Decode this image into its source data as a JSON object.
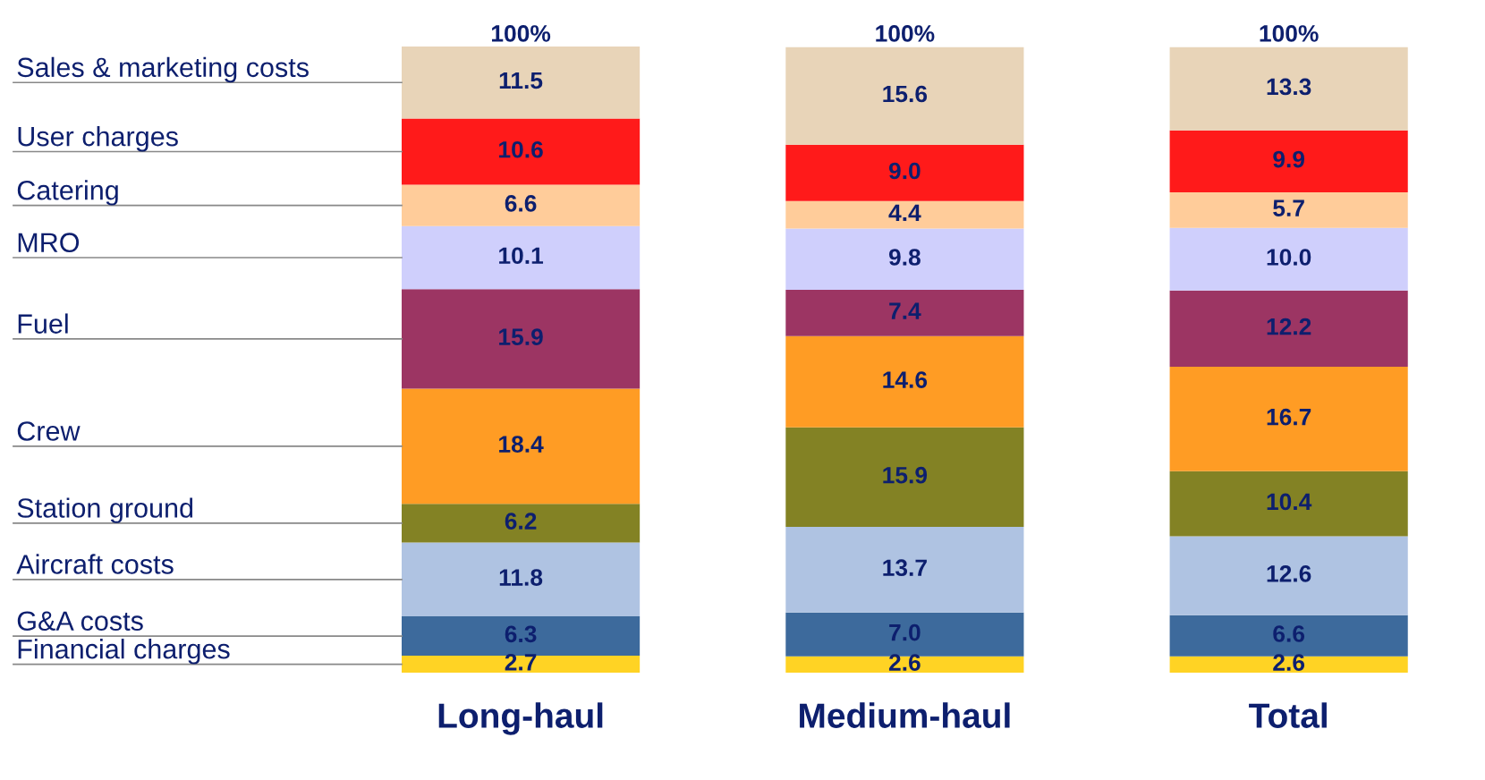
{
  "chart_data": {
    "type": "bar",
    "stacked": true,
    "legend": false,
    "categories": [
      "Long-haul",
      "Medium-haul",
      "Total"
    ],
    "totals": [
      "100%",
      "100%",
      "100%"
    ],
    "series": [
      {
        "name": "Financial charges",
        "color": "#ffd324",
        "values": [
          2.7,
          2.6,
          2.6
        ],
        "value_labels": [
          "2.7",
          "2.6",
          "2.6"
        ]
      },
      {
        "name": "G&A costs",
        "color": "#3d6a9c",
        "values": [
          6.3,
          7.0,
          6.6
        ],
        "value_labels": [
          "6.3",
          "7.0",
          "6.6"
        ]
      },
      {
        "name": "Aircraft costs",
        "color": "#afc3e2",
        "values": [
          11.8,
          13.7,
          12.6
        ],
        "value_labels": [
          "11.8",
          "13.7",
          "12.6"
        ]
      },
      {
        "name": "Station ground",
        "color": "#838224",
        "values": [
          6.2,
          15.9,
          10.4
        ],
        "value_labels": [
          "6.2",
          "15.9",
          "10.4"
        ]
      },
      {
        "name": "Crew",
        "color": "#ff9c24",
        "values": [
          18.4,
          14.6,
          16.7
        ],
        "value_labels": [
          "18.4",
          "14.6",
          "16.7"
        ]
      },
      {
        "name": "Fuel",
        "color": "#9c3563",
        "values": [
          15.9,
          7.4,
          12.2
        ],
        "value_labels": [
          "15.9",
          "7.4",
          "12.2"
        ]
      },
      {
        "name": "MRO",
        "color": "#cfcffc",
        "values": [
          10.1,
          9.8,
          10.0
        ],
        "value_labels": [
          "10.1",
          "9.8",
          "10.0"
        ]
      },
      {
        "name": "Catering",
        "color": "#ffcc9a",
        "values": [
          6.6,
          4.4,
          5.7
        ],
        "value_labels": [
          "6.6",
          "4.4",
          "5.7"
        ]
      },
      {
        "name": "User charges",
        "color": "#ff1a1a",
        "values": [
          10.6,
          9.0,
          9.9
        ],
        "value_labels": [
          "10.6",
          "9.0",
          "9.9"
        ]
      },
      {
        "name": "Sales & marketing costs",
        "color": "#e8d4b8",
        "values": [
          11.5,
          15.6,
          13.3
        ],
        "value_labels": [
          "11.5",
          "15.6",
          "13.3"
        ]
      }
    ]
  }
}
